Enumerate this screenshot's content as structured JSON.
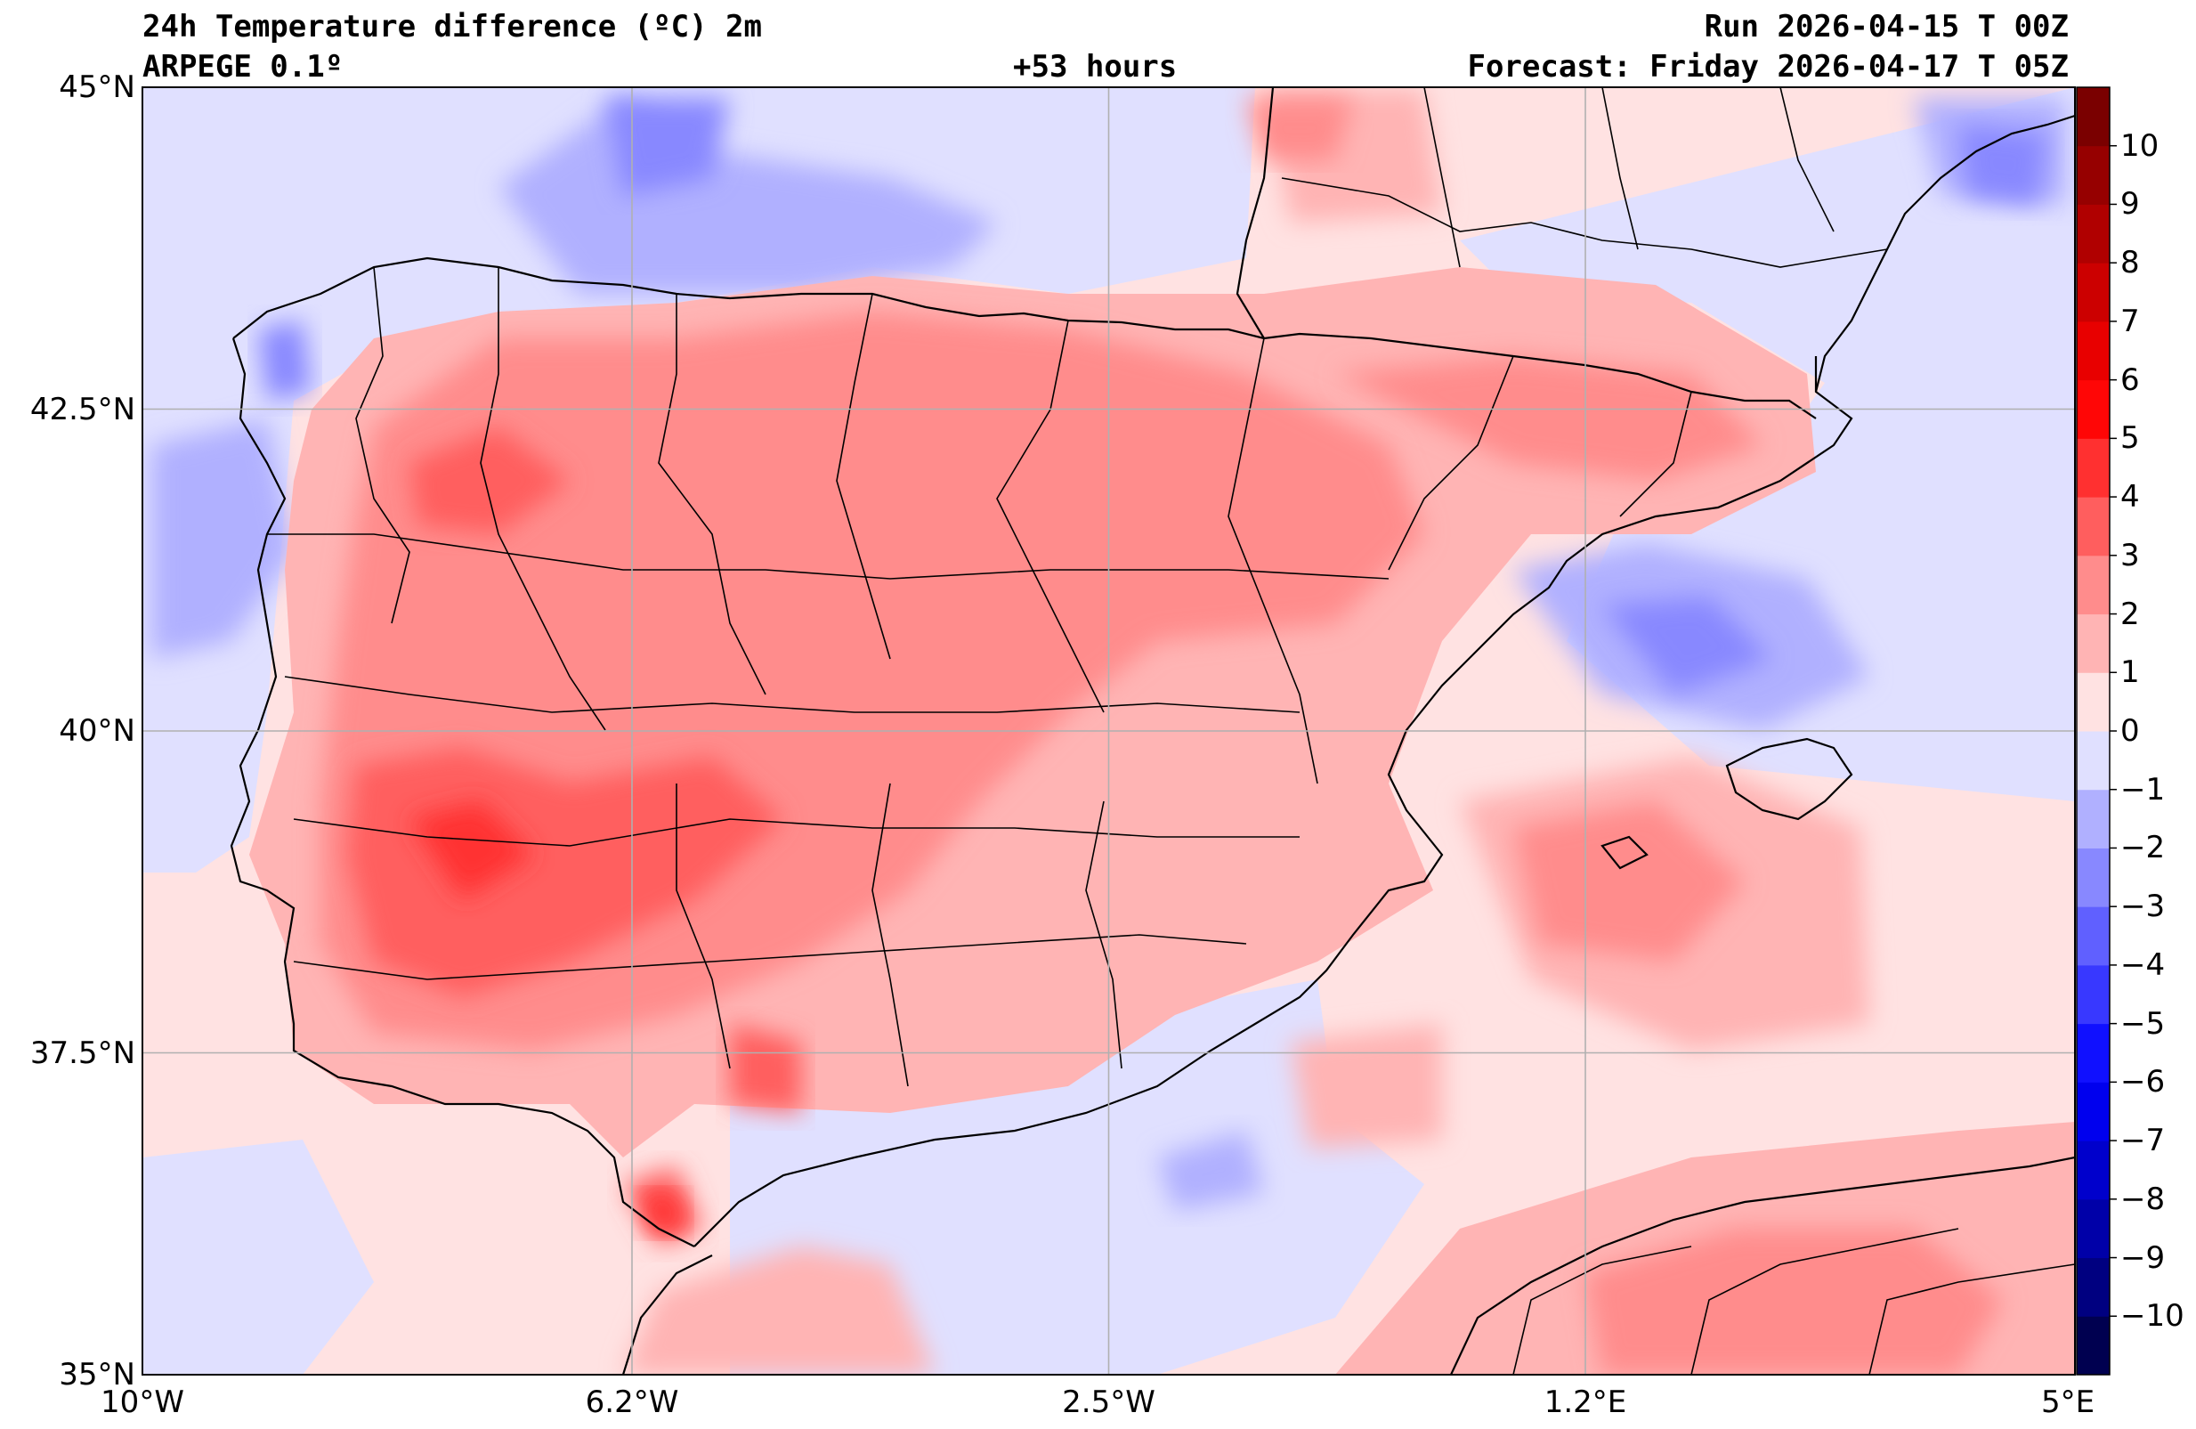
{
  "header": {
    "title": "24h Temperature difference (ºC) 2m",
    "model": "ARPEGE 0.1º",
    "lead": "+53 hours",
    "run": "Run 2026-04-15 T 00Z",
    "forecast": "Forecast: Friday 2026-04-17 T 05Z"
  },
  "map": {
    "lon_range": [
      -10,
      5
    ],
    "lat_range": [
      35,
      45
    ],
    "x_ticks": [
      {
        "value": -10,
        "label": "10°W"
      },
      {
        "value": -6.2,
        "label": "6.2°W"
      },
      {
        "value": -2.5,
        "label": "2.5°W"
      },
      {
        "value": 1.2,
        "label": "1.2°E"
      },
      {
        "value": 5,
        "label": "5°E"
      }
    ],
    "y_ticks": [
      {
        "value": 45,
        "label": "45°N"
      },
      {
        "value": 42.5,
        "label": "42.5°N"
      },
      {
        "value": 40,
        "label": "40°N"
      },
      {
        "value": 37.5,
        "label": "37.5°N"
      },
      {
        "value": 35,
        "label": "35°N"
      }
    ],
    "grid": true
  },
  "colorbar": {
    "levels": [
      -11,
      -10,
      -9,
      -8,
      -7,
      -6,
      -5,
      -4,
      -3,
      -2,
      -1,
      0,
      1,
      2,
      3,
      4,
      5,
      6,
      7,
      8,
      9,
      10,
      11
    ],
    "colors": [
      "#000050",
      "#000080",
      "#0000a8",
      "#0000cc",
      "#0000ee",
      "#1010ff",
      "#3838ff",
      "#6060ff",
      "#8888ff",
      "#b0b0ff",
      "#e0e0ff",
      "#ffe2e2",
      "#ffb4b4",
      "#ff8c8c",
      "#ff5e5e",
      "#ff3030",
      "#ff0606",
      "#e80000",
      "#cc0000",
      "#b00000",
      "#960000",
      "#7a0000"
    ],
    "tick_labels": [
      {
        "value": -10,
        "label": "−10"
      },
      {
        "value": -9,
        "label": "−9"
      },
      {
        "value": -8,
        "label": "−8"
      },
      {
        "value": -7,
        "label": "−7"
      },
      {
        "value": -6,
        "label": "−6"
      },
      {
        "value": -5,
        "label": "−5"
      },
      {
        "value": -4,
        "label": "−4"
      },
      {
        "value": -3,
        "label": "−3"
      },
      {
        "value": -2,
        "label": "−2"
      },
      {
        "value": -1,
        "label": "−1"
      },
      {
        "value": 0,
        "label": "0"
      },
      {
        "value": 1,
        "label": "1"
      },
      {
        "value": 2,
        "label": "2"
      },
      {
        "value": 3,
        "label": "3"
      },
      {
        "value": 4,
        "label": "4"
      },
      {
        "value": 5,
        "label": "5"
      },
      {
        "value": 6,
        "label": "6"
      },
      {
        "value": 7,
        "label": "7"
      },
      {
        "value": 8,
        "label": "8"
      },
      {
        "value": 9,
        "label": "9"
      },
      {
        "value": 10,
        "label": "10"
      }
    ]
  }
}
